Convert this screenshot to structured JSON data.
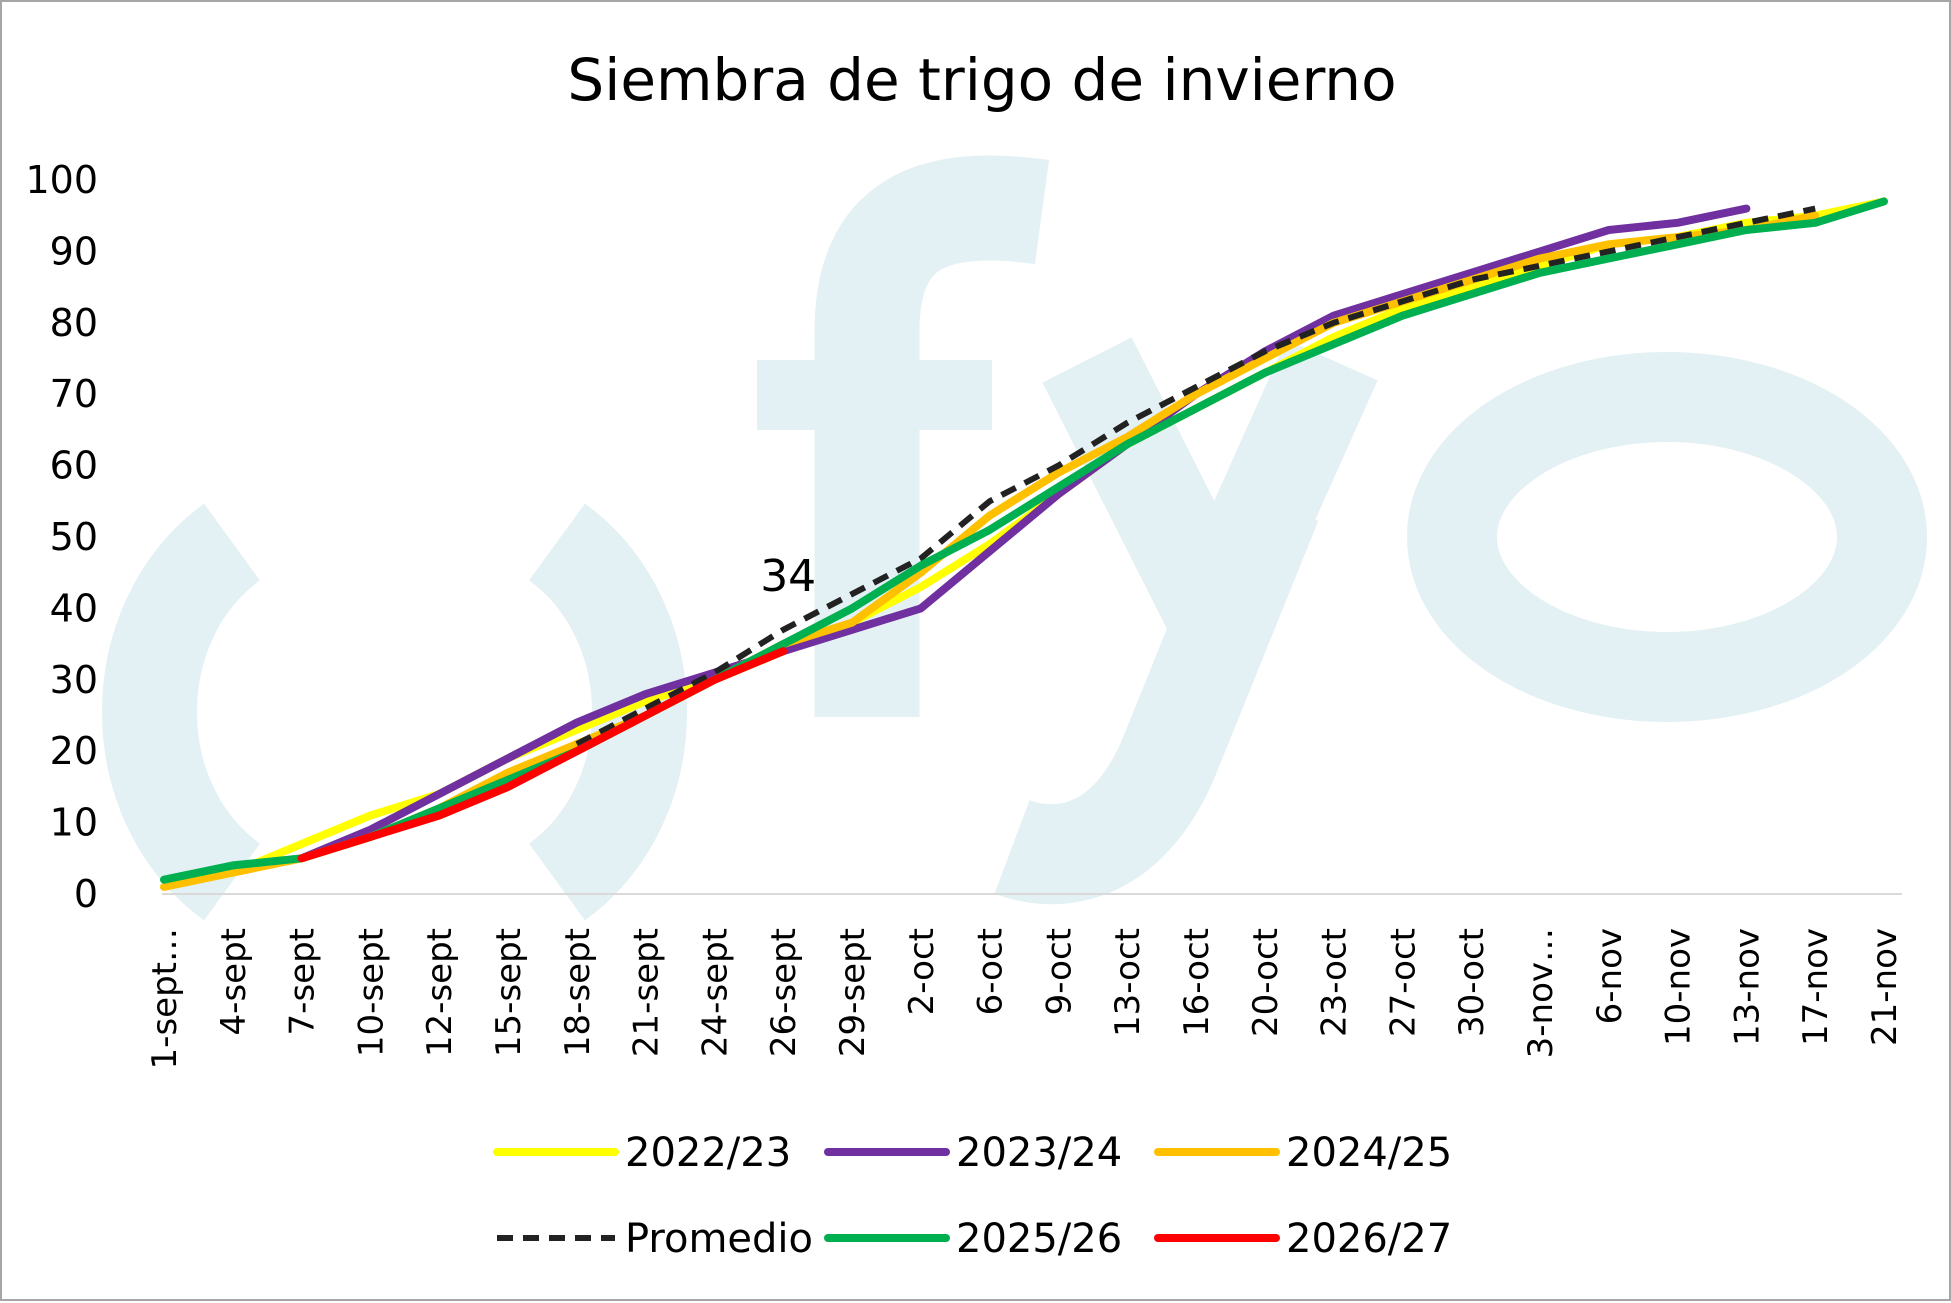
{
  "chart_data": {
    "type": "line",
    "title": "Siembra de trigo de invierno",
    "xlabel": "",
    "ylabel": "",
    "ylim": [
      0,
      100
    ],
    "yticks": [
      0,
      10,
      20,
      30,
      40,
      50,
      60,
      70,
      80,
      90,
      100
    ],
    "grid": false,
    "legend_position": "bottom",
    "categories": [
      "1-sept…",
      "4-sept",
      "7-sept",
      "10-sept",
      "12-sept",
      "15-sept",
      "18-sept",
      "21-sept",
      "24-sept",
      "26-sept",
      "29-sept",
      "2-oct",
      "6-oct",
      "9-oct",
      "13-oct",
      "16-oct",
      "20-oct",
      "23-oct",
      "27-oct",
      "30-oct",
      "3-nov…",
      "6-nov",
      "10-nov",
      "13-nov",
      "17-nov",
      "21-nov"
    ],
    "series": [
      {
        "name": "2022/23",
        "color": "#ffff00",
        "dash": false,
        "values": [
          null,
          3,
          7,
          11,
          14,
          19,
          23,
          27,
          30,
          34,
          38,
          43,
          49,
          56,
          63,
          68,
          73,
          78,
          82,
          85,
          88,
          91,
          92,
          94,
          95,
          97
        ]
      },
      {
        "name": "2023/24",
        "color": "#7030a0",
        "dash": false,
        "values": [
          null,
          null,
          5,
          9,
          14,
          19,
          24,
          28,
          31,
          34,
          37,
          40,
          48,
          56,
          63,
          70,
          76,
          81,
          84,
          87,
          90,
          93,
          94,
          96,
          null,
          null
        ]
      },
      {
        "name": "2024/25",
        "color": "#ffc000",
        "dash": false,
        "values": [
          1,
          3,
          5,
          8,
          12,
          17,
          21,
          25,
          30,
          35,
          38,
          45,
          53,
          59,
          64,
          70,
          75,
          80,
          83,
          86,
          89,
          91,
          92,
          93,
          95,
          null
        ]
      },
      {
        "name": "Promedio",
        "color": "#222222",
        "dash": true,
        "values": [
          null,
          null,
          null,
          null,
          null,
          null,
          21,
          26,
          31,
          37,
          42,
          47,
          55,
          60,
          66,
          71,
          76,
          80,
          83,
          86,
          88,
          90,
          92,
          94,
          96,
          null
        ]
      },
      {
        "name": "2025/26",
        "color": "#00b050",
        "dash": false,
        "values": [
          2,
          4,
          5,
          8,
          12,
          16,
          20,
          25,
          30,
          35,
          40,
          46,
          51,
          57,
          63,
          68,
          73,
          77,
          81,
          84,
          87,
          89,
          91,
          93,
          94,
          97
        ]
      },
      {
        "name": "2026/27",
        "color": "#ff0000",
        "dash": false,
        "values": [
          null,
          null,
          5,
          8,
          11,
          15,
          20,
          25,
          30,
          34,
          null,
          null,
          null,
          null,
          null,
          null,
          null,
          null,
          null,
          null,
          null,
          null,
          null,
          null,
          null,
          null
        ]
      }
    ],
    "annotations": [
      {
        "text": "34",
        "series": "2026/27",
        "category": "26-sept",
        "value": 34
      }
    ]
  }
}
